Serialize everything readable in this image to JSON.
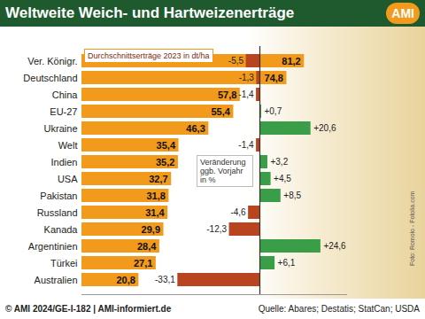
{
  "chart_data": [
    {
      "type": "bar",
      "title": "Weltweite Weich- und Hartweizenerträge",
      "logo": "AMI",
      "caption": "© AMI 2024/GE-I-182 | AMI-informiert.de",
      "source": "Quelle: Abares; Destatis; StatCan; USDA",
      "photo_credit": "Foto: Romolo - Fotolia.com",
      "orientation": "horizontal",
      "categories": [
        "Ver. Königr.",
        "Deutschland",
        "China",
        "EU-27",
        "Ukraine",
        "Welt",
        "Indien",
        "USA",
        "Pakistan",
        "Russland",
        "Kanada",
        "Argentinien",
        "Türkei",
        "Australien"
      ],
      "series": [
        {
          "name": "Durchschnittserträge 2023 in dt/ha",
          "color": "#f29a1c",
          "values": [
            81.2,
            74.8,
            57.8,
            55.4,
            46.3,
            35.4,
            35.2,
            32.7,
            31.8,
            31.4,
            29.9,
            28.4,
            27.1,
            20.8
          ],
          "value_labels": [
            "81,2",
            "74,8",
            "57,8",
            "55,4",
            "46,3",
            "35,4",
            "35,2",
            "32,7",
            "31,8",
            "31,4",
            "29,9",
            "28,4",
            "27,1",
            "20,8"
          ]
        }
      ],
      "xlim": [
        0,
        85
      ],
      "data_labels": true,
      "tick_labels": "y"
    },
    {
      "type": "bar",
      "orientation": "horizontal",
      "categories": [
        "Ver. Königr.",
        "Deutschland",
        "China",
        "EU-27",
        "Ukraine",
        "Welt",
        "Indien",
        "USA",
        "Pakistan",
        "Russland",
        "Kanada",
        "Argentinien",
        "Türkei",
        "Australien"
      ],
      "series": [
        {
          "name": "Veränderung ggb. Vorjahr in %",
          "values": [
            -5.5,
            -1.3,
            -1.4,
            0.7,
            20.6,
            -1.4,
            3.2,
            4.5,
            8.5,
            -4.6,
            -12.3,
            24.6,
            6.1,
            -33.1
          ],
          "value_labels": [
            "-5,5",
            "-1,3",
            "-1,4",
            "+0,7",
            "+20,6",
            "-1,4",
            "+3,2",
            "+4,5",
            "+8,5",
            "-4,6",
            "-12,3",
            "+24,6",
            "+6,1",
            "-33,1"
          ],
          "colors": [
            "#b8451f",
            "#b8451f",
            "#b8451f",
            "#3a9e48",
            "#3a9e48",
            "#b8451f",
            "#3a9e48",
            "#3a9e48",
            "#3a9e48",
            "#b8451f",
            "#b8451f",
            "#3a9e48",
            "#3a9e48",
            "#b8451f"
          ]
        }
      ],
      "xlim": [
        -35,
        35
      ],
      "data_labels": true,
      "tick_labels": false
    }
  ]
}
